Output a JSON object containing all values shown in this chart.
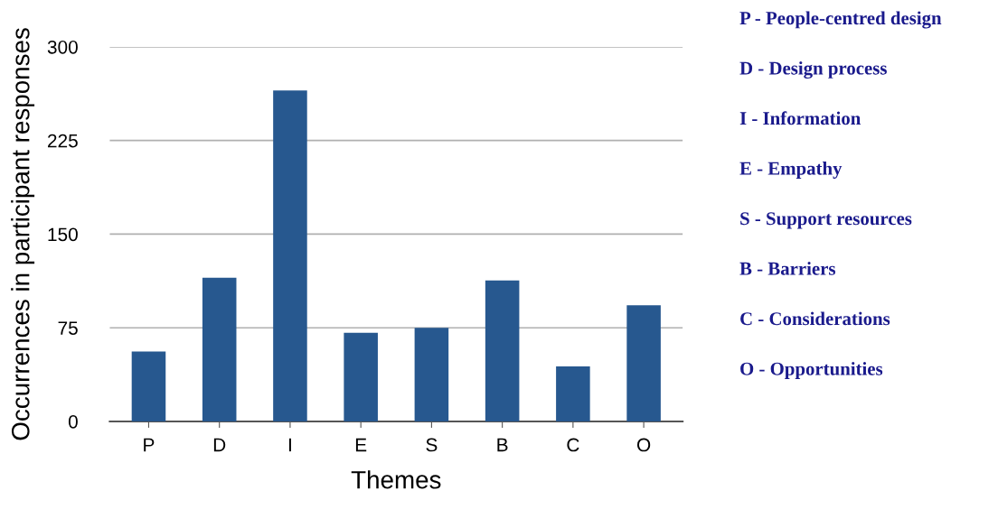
{
  "chart_data": {
    "type": "bar",
    "xlabel": "Themes",
    "ylabel": "Occurrences in participant responses",
    "categories": [
      "P",
      "D",
      "I",
      "E",
      "S",
      "B",
      "C",
      "O"
    ],
    "values": [
      56,
      115,
      265,
      71,
      75,
      113,
      44,
      93
    ],
    "color": "#27588f",
    "ylim": [
      0,
      300
    ],
    "yticks": [
      0,
      75,
      150,
      225,
      300
    ],
    "grid": "y",
    "annotations": [
      "P - People-centred design",
      "D - Design process",
      "I - Information",
      "E - Empathy",
      "S - Support resources",
      "B - Barriers",
      "C - Considerations",
      "O - Opportunities"
    ]
  }
}
